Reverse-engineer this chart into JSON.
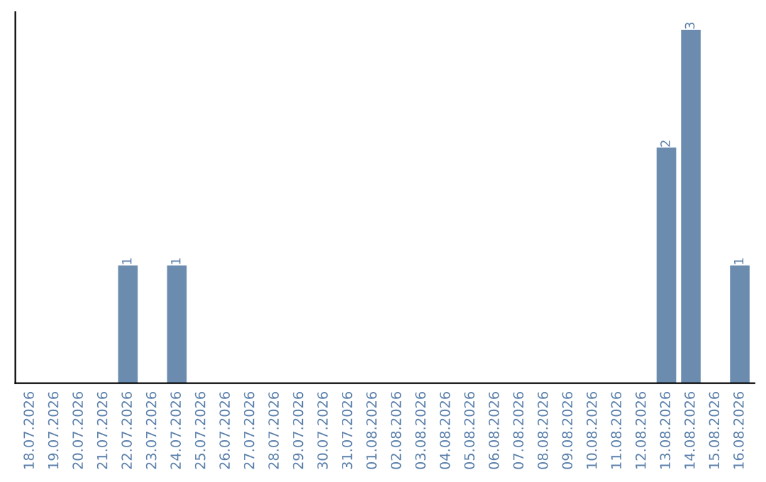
{
  "chart_data": {
    "type": "bar",
    "categories": [
      "18.07.2026",
      "19.07.2026",
      "20.07.2026",
      "21.07.2026",
      "22.07.2026",
      "23.07.2026",
      "24.07.2026",
      "25.07.2026",
      "26.07.2026",
      "27.07.2026",
      "28.07.2026",
      "29.07.2026",
      "30.07.2026",
      "31.07.2026",
      "01.08.2026",
      "02.08.2026",
      "03.08.2026",
      "04.08.2026",
      "05.08.2026",
      "06.08.2026",
      "07.08.2026",
      "08.08.2026",
      "09.08.2026",
      "10.08.2026",
      "11.08.2026",
      "12.08.2026",
      "13.08.2026",
      "14.08.2026",
      "15.08.2026",
      "16.08.2026"
    ],
    "values": [
      0,
      0,
      0,
      0,
      1,
      0,
      1,
      0,
      0,
      0,
      0,
      0,
      0,
      0,
      0,
      0,
      0,
      0,
      0,
      0,
      0,
      0,
      0,
      0,
      0,
      0,
      2,
      3,
      0,
      1
    ],
    "color": "#6b8cae",
    "value_labels": [
      null,
      null,
      null,
      null,
      "1",
      null,
      "1",
      null,
      null,
      null,
      null,
      null,
      null,
      null,
      null,
      null,
      null,
      null,
      null,
      null,
      null,
      null,
      null,
      null,
      null,
      null,
      "2",
      "3",
      null,
      "1"
    ],
    "tick_labels": "x",
    "grid": false,
    "legend": false
  }
}
